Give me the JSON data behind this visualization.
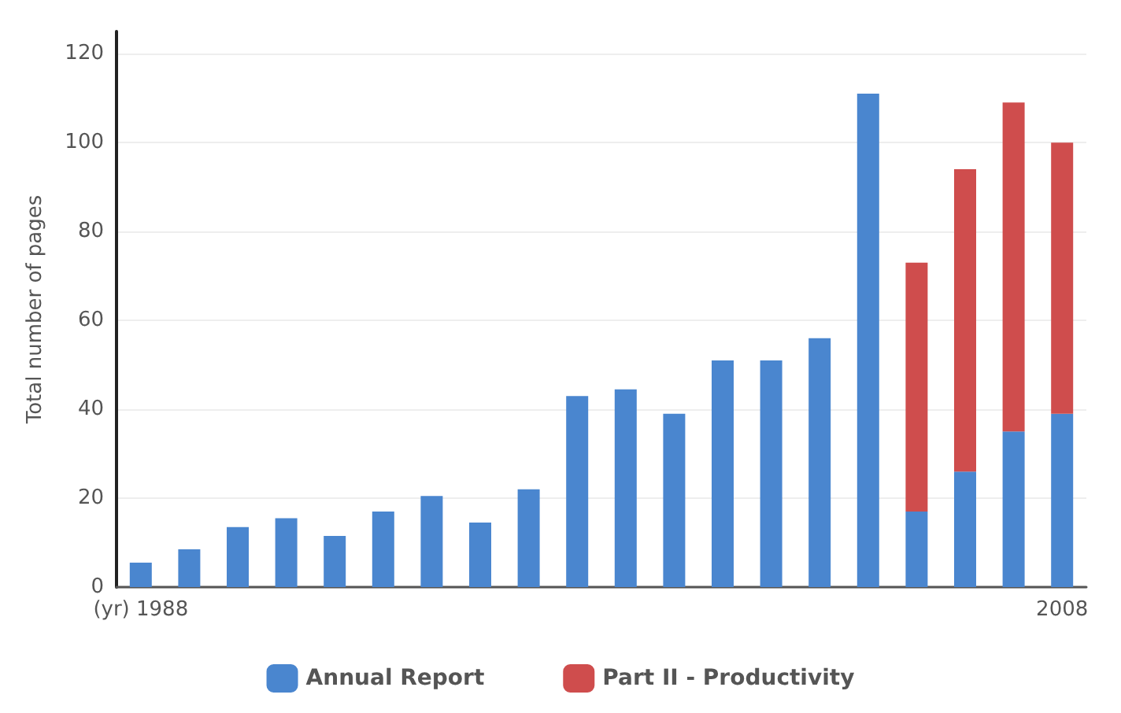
{
  "chart_data": {
    "type": "bar",
    "stacked": true,
    "ylabel": "Total number of pages",
    "categories": [
      "(yr) 1988",
      null,
      null,
      null,
      null,
      null,
      null,
      null,
      null,
      null,
      null,
      null,
      null,
      null,
      null,
      null,
      null,
      null,
      null,
      "2008"
    ],
    "series": [
      {
        "name": "Annual Report",
        "color": "#4a86cf",
        "values": [
          5.5,
          8.5,
          13.5,
          15.5,
          11.5,
          17,
          20.5,
          14.5,
          22,
          43,
          44.5,
          39,
          51,
          51,
          56,
          111,
          17,
          26,
          35,
          39
        ]
      },
      {
        "name": "Part II - Productivity",
        "color": "#cf4d4d",
        "values": [
          null,
          null,
          null,
          null,
          null,
          null,
          null,
          null,
          null,
          null,
          null,
          null,
          null,
          null,
          null,
          null,
          56,
          68,
          74,
          61
        ]
      }
    ],
    "ylim": [
      0,
      125
    ],
    "yticks": [
      0,
      20,
      40,
      60,
      80,
      100,
      120
    ],
    "grid": "y",
    "legend": "bottom"
  }
}
